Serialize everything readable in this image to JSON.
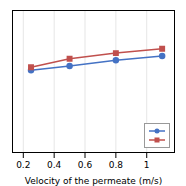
{
  "chart_data": {
    "type": "line",
    "xlabel": "Velocity of the permeate (m/s)",
    "x": [
      0.25,
      0.5,
      0.8,
      1.1
    ],
    "series": [
      {
        "color": "#4472C4",
        "marker": "circle",
        "values": [
          58,
          61,
          65,
          68
        ]
      },
      {
        "color": "#C0504D",
        "marker": "square",
        "values": [
          60,
          66,
          70,
          73
        ]
      }
    ],
    "xlim": [
      0.13,
      1.18
    ],
    "xticks": [
      0.2,
      0.4,
      0.6,
      0.8,
      1
    ],
    "ylim": [
      0,
      100
    ],
    "yticks": [],
    "tick_labels": "x",
    "grid": true,
    "legend": "lower right"
  }
}
